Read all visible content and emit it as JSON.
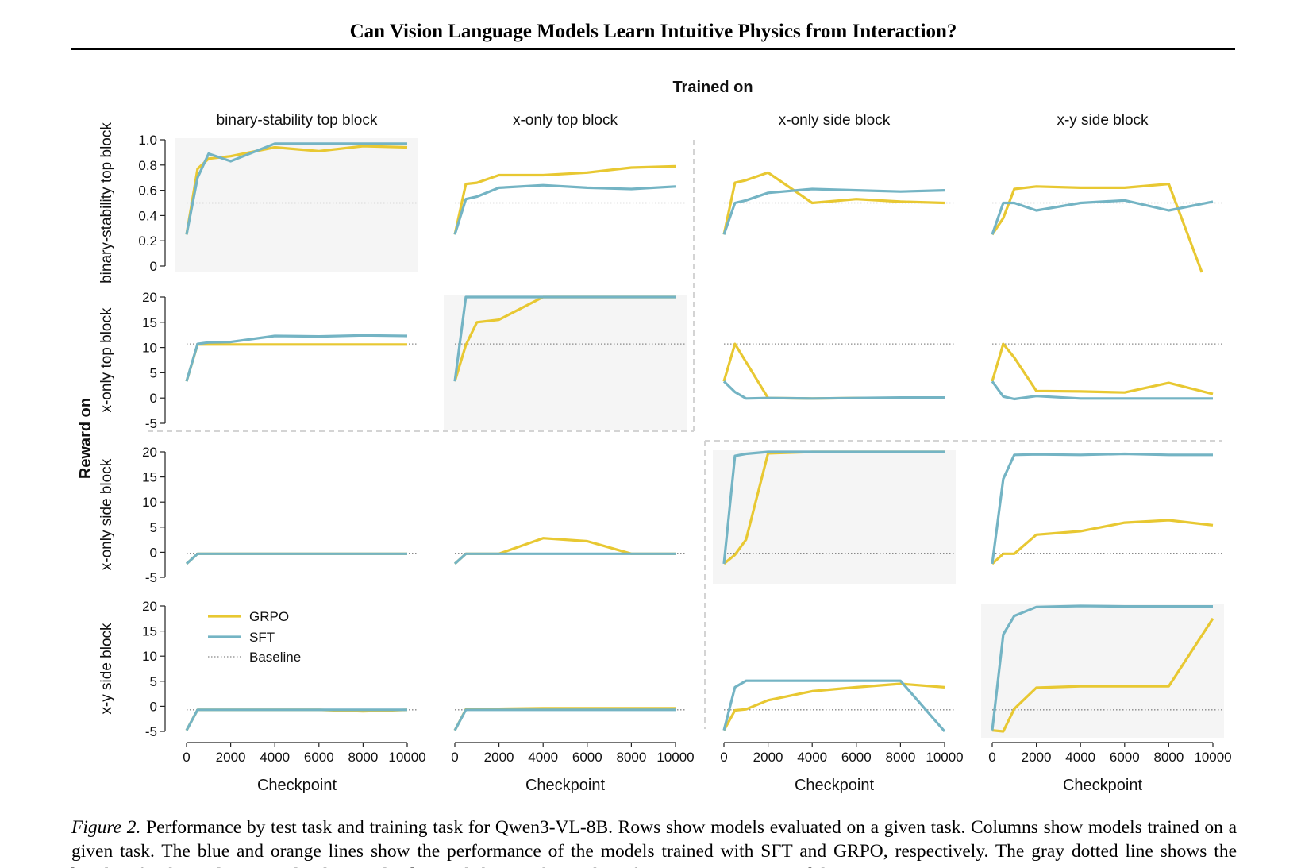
{
  "header": {
    "running_title": "Can Vision Language Models Learn Intuitive Physics from Interaction?"
  },
  "figure": {
    "trained_on_label": "Trained on",
    "reward_on_label": "Reward on",
    "legend": {
      "placement": "inside bottom-left panel, top-left",
      "entries": [
        {
          "name": "GRPO",
          "color": "#e8c832",
          "style": "solid"
        },
        {
          "name": "SFT",
          "color": "#74b4c4",
          "style": "solid"
        },
        {
          "name": "Baseline",
          "color": "#888888",
          "style": "dotted"
        }
      ]
    },
    "colors": {
      "grpo": "#e8c832",
      "sft": "#74b4c4",
      "baseline": "#888888",
      "diagonal_bg": "#f5f5f5"
    }
  },
  "chart_data": {
    "type": "line",
    "layout": "4x4 small multiples; columns = training task, rows = evaluation task; diagonal panels shaded",
    "column_titles": [
      "binary-stability top block",
      "x-only top block",
      "x-only side block",
      "x-y side block"
    ],
    "row_labels": [
      "binary-stability top block",
      "x-only top block",
      "x-only side block",
      "x-y side block"
    ],
    "xlabel": "Checkpoint",
    "x_ticks": [
      0,
      2000,
      4000,
      6000,
      8000,
      10000
    ],
    "xlim": [
      0,
      10000
    ],
    "rows": [
      {
        "ylim": [
          0,
          1.0
        ],
        "y_ticks": [
          0,
          0.2,
          0.4,
          0.6,
          0.8,
          1.0
        ],
        "y_tick_labels": [
          "0",
          "0.2",
          "0.4",
          "0.6",
          "0.8",
          "1.0"
        ],
        "baseline": 0.5
      },
      {
        "ylim": [
          -5,
          20
        ],
        "y_ticks": [
          -5,
          0,
          5,
          10,
          15,
          20
        ],
        "y_tick_labels": [
          "-5",
          "0",
          "5",
          "10",
          "15",
          "20"
        ],
        "baseline": 10.7
      },
      {
        "ylim": [
          -5,
          20
        ],
        "y_ticks": [
          -5,
          0,
          5,
          10,
          15,
          20
        ],
        "y_tick_labels": [
          "-5",
          "0",
          "5",
          "10",
          "15",
          "20"
        ],
        "baseline": -0.2
      },
      {
        "ylim": [
          -5,
          20
        ],
        "y_ticks": [
          -5,
          0,
          5,
          10,
          15,
          20
        ],
        "y_tick_labels": [
          "-5",
          "0",
          "5",
          "10",
          "15",
          "20"
        ],
        "baseline": -0.7
      }
    ],
    "panels": [
      {
        "row": 0,
        "col": 0,
        "diagonal": true,
        "series": [
          {
            "name": "GRPO",
            "x": [
              0,
              500,
              1000,
              2000,
              4000,
              6000,
              8000,
              10000
            ],
            "y": [
              0.25,
              0.77,
              0.85,
              0.87,
              0.94,
              0.91,
              0.95,
              0.94
            ]
          },
          {
            "name": "SFT",
            "x": [
              0,
              500,
              1000,
              2000,
              4000,
              6000,
              8000,
              10000
            ],
            "y": [
              0.25,
              0.7,
              0.89,
              0.83,
              0.97,
              0.97,
              0.97,
              0.97
            ]
          }
        ]
      },
      {
        "row": 0,
        "col": 1,
        "diagonal": false,
        "series": [
          {
            "name": "GRPO",
            "x": [
              0,
              500,
              1000,
              2000,
              4000,
              6000,
              8000,
              10000
            ],
            "y": [
              0.25,
              0.65,
              0.66,
              0.72,
              0.72,
              0.74,
              0.78,
              0.79
            ]
          },
          {
            "name": "SFT",
            "x": [
              0,
              500,
              1000,
              2000,
              4000,
              6000,
              8000,
              10000
            ],
            "y": [
              0.25,
              0.53,
              0.55,
              0.62,
              0.64,
              0.62,
              0.61,
              0.63
            ]
          }
        ]
      },
      {
        "row": 0,
        "col": 2,
        "diagonal": false,
        "series": [
          {
            "name": "GRPO",
            "x": [
              0,
              500,
              1000,
              2000,
              4000,
              6000,
              8000,
              10000
            ],
            "y": [
              0.25,
              0.66,
              0.68,
              0.74,
              0.5,
              0.53,
              0.51,
              0.5
            ]
          },
          {
            "name": "SFT",
            "x": [
              0,
              500,
              1000,
              2000,
              4000,
              6000,
              8000,
              10000
            ],
            "y": [
              0.25,
              0.5,
              0.52,
              0.58,
              0.61,
              0.6,
              0.59,
              0.6
            ]
          }
        ]
      },
      {
        "row": 0,
        "col": 3,
        "diagonal": false,
        "series": [
          {
            "name": "GRPO",
            "x": [
              0,
              500,
              1000,
              2000,
              4000,
              6000,
              8000,
              9500
            ],
            "y": [
              0.25,
              0.38,
              0.61,
              0.63,
              0.62,
              0.62,
              0.65,
              -0.05
            ]
          },
          {
            "name": "SFT",
            "x": [
              0,
              500,
              1000,
              2000,
              4000,
              6000,
              8000,
              10000
            ],
            "y": [
              0.25,
              0.5,
              0.5,
              0.44,
              0.5,
              0.52,
              0.44,
              0.51
            ]
          }
        ]
      },
      {
        "row": 1,
        "col": 0,
        "diagonal": false,
        "series": [
          {
            "name": "GRPO",
            "x": [
              0,
              500,
              1000,
              2000,
              4000,
              6000,
              8000,
              10000
            ],
            "y": [
              3.3,
              10.6,
              10.6,
              10.6,
              10.6,
              10.6,
              10.6,
              10.6
            ]
          },
          {
            "name": "SFT",
            "x": [
              0,
              500,
              1000,
              2000,
              4000,
              6000,
              8000,
              10000
            ],
            "y": [
              3.3,
              10.7,
              11.0,
              11.1,
              12.3,
              12.2,
              12.4,
              12.3
            ]
          }
        ]
      },
      {
        "row": 1,
        "col": 1,
        "diagonal": true,
        "series": [
          {
            "name": "GRPO",
            "x": [
              0,
              500,
              1000,
              2000,
              4000,
              6000,
              8000,
              10000
            ],
            "y": [
              3.3,
              10.5,
              15.0,
              15.5,
              20.0,
              20.0,
              20.0,
              20.0
            ]
          },
          {
            "name": "SFT",
            "x": [
              0,
              500,
              1000,
              2000,
              4000,
              6000,
              8000,
              10000
            ],
            "y": [
              3.3,
              20.0,
              20.0,
              20.0,
              20.0,
              20.0,
              20.0,
              20.0
            ]
          }
        ]
      },
      {
        "row": 1,
        "col": 2,
        "diagonal": false,
        "series": [
          {
            "name": "GRPO",
            "x": [
              0,
              500,
              2000,
              4000,
              6000,
              8000,
              10000
            ],
            "y": [
              3.3,
              10.7,
              0.0,
              -0.1,
              0.0,
              0.0,
              0.1
            ]
          },
          {
            "name": "SFT",
            "x": [
              0,
              500,
              1000,
              2000,
              4000,
              6000,
              8000,
              10000
            ],
            "y": [
              3.3,
              1.2,
              -0.1,
              0.0,
              -0.1,
              0.0,
              0.1,
              0.1
            ]
          }
        ]
      },
      {
        "row": 1,
        "col": 3,
        "diagonal": false,
        "series": [
          {
            "name": "GRPO",
            "x": [
              0,
              500,
              1000,
              2000,
              4000,
              6000,
              8000,
              10000
            ],
            "y": [
              3.3,
              10.7,
              8.0,
              1.4,
              1.3,
              1.1,
              3.0,
              0.8
            ]
          },
          {
            "name": "SFT",
            "x": [
              0,
              500,
              1000,
              2000,
              4000,
              6000,
              8000,
              10000
            ],
            "y": [
              3.3,
              0.3,
              -0.2,
              0.4,
              -0.1,
              -0.1,
              -0.1,
              -0.1
            ]
          }
        ]
      },
      {
        "row": 2,
        "col": 0,
        "diagonal": false,
        "series": [
          {
            "name": "GRPO",
            "x": [
              0,
              500,
              1000,
              2000,
              4000,
              6000,
              8000,
              10000
            ],
            "y": [
              -2.3,
              -0.3,
              -0.3,
              -0.3,
              -0.3,
              -0.3,
              -0.3,
              -0.3
            ]
          },
          {
            "name": "SFT",
            "x": [
              0,
              500,
              1000,
              2000,
              4000,
              6000,
              8000,
              10000
            ],
            "y": [
              -2.3,
              -0.3,
              -0.3,
              -0.3,
              -0.3,
              -0.3,
              -0.3,
              -0.3
            ]
          }
        ]
      },
      {
        "row": 2,
        "col": 1,
        "diagonal": false,
        "series": [
          {
            "name": "GRPO",
            "x": [
              0,
              500,
              1000,
              2000,
              4000,
              6000,
              8000,
              10000
            ],
            "y": [
              -2.3,
              -0.3,
              -0.3,
              -0.3,
              2.8,
              2.2,
              -0.3,
              -0.3
            ]
          },
          {
            "name": "SFT",
            "x": [
              0,
              500,
              1000,
              2000,
              4000,
              6000,
              8000,
              10000
            ],
            "y": [
              -2.3,
              -0.3,
              -0.3,
              -0.3,
              -0.3,
              -0.3,
              -0.3,
              -0.3
            ]
          }
        ]
      },
      {
        "row": 2,
        "col": 2,
        "diagonal": true,
        "series": [
          {
            "name": "GRPO",
            "x": [
              0,
              500,
              1000,
              2000,
              4000,
              6000,
              8000,
              10000
            ],
            "y": [
              -2.3,
              -0.5,
              2.5,
              19.7,
              20.0,
              20.0,
              20.0,
              20.0
            ]
          },
          {
            "name": "SFT",
            "x": [
              0,
              500,
              1000,
              2000,
              4000,
              6000,
              8000,
              10000
            ],
            "y": [
              -2.3,
              19.2,
              19.6,
              20.0,
              20.0,
              20.0,
              20.0,
              20.0
            ]
          }
        ]
      },
      {
        "row": 2,
        "col": 3,
        "diagonal": false,
        "series": [
          {
            "name": "GRPO",
            "x": [
              0,
              500,
              1000,
              2000,
              4000,
              6000,
              8000,
              10000
            ],
            "y": [
              -2.3,
              -0.3,
              -0.3,
              3.5,
              4.2,
              5.9,
              6.4,
              5.4
            ]
          },
          {
            "name": "SFT",
            "x": [
              0,
              500,
              1000,
              2000,
              4000,
              6000,
              8000,
              10000
            ],
            "y": [
              -2.3,
              14.6,
              19.4,
              19.5,
              19.4,
              19.6,
              19.4,
              19.4
            ]
          }
        ]
      },
      {
        "row": 3,
        "col": 0,
        "diagonal": false,
        "series": [
          {
            "name": "GRPO",
            "x": [
              0,
              500,
              1000,
              2000,
              4000,
              6000,
              8000,
              10000
            ],
            "y": [
              -4.8,
              -0.7,
              -0.7,
              -0.7,
              -0.7,
              -0.7,
              -1.0,
              -0.7
            ]
          },
          {
            "name": "SFT",
            "x": [
              0,
              500,
              1000,
              2000,
              4000,
              6000,
              8000,
              10000
            ],
            "y": [
              -4.8,
              -0.7,
              -0.7,
              -0.7,
              -0.7,
              -0.7,
              -0.7,
              -0.7
            ]
          }
        ]
      },
      {
        "row": 3,
        "col": 1,
        "diagonal": false,
        "series": [
          {
            "name": "GRPO",
            "x": [
              0,
              500,
              1000,
              2000,
              4000,
              6000,
              8000,
              10000
            ],
            "y": [
              -4.8,
              -0.6,
              -0.6,
              -0.5,
              -0.4,
              -0.4,
              -0.4,
              -0.4
            ]
          },
          {
            "name": "SFT",
            "x": [
              0,
              500,
              1000,
              2000,
              4000,
              6000,
              8000,
              10000
            ],
            "y": [
              -4.8,
              -0.7,
              -0.7,
              -0.7,
              -0.7,
              -0.7,
              -0.7,
              -0.7
            ]
          }
        ]
      },
      {
        "row": 3,
        "col": 2,
        "diagonal": false,
        "series": [
          {
            "name": "GRPO",
            "x": [
              0,
              500,
              1000,
              2000,
              4000,
              6000,
              8000,
              10000
            ],
            "y": [
              -4.8,
              -0.8,
              -0.6,
              1.2,
              3.0,
              3.8,
              4.5,
              3.8
            ]
          },
          {
            "name": "SFT",
            "x": [
              0,
              500,
              1000,
              2000,
              4000,
              6000,
              8000,
              10000
            ],
            "y": [
              -4.8,
              3.8,
              5.1,
              5.1,
              5.1,
              5.1,
              5.1,
              -5.0
            ]
          }
        ]
      },
      {
        "row": 3,
        "col": 3,
        "diagonal": true,
        "series": [
          {
            "name": "GRPO",
            "x": [
              0,
              500,
              1000,
              2000,
              4000,
              6000,
              8000,
              10000
            ],
            "y": [
              -4.8,
              -5.0,
              -0.5,
              3.7,
              4.0,
              4.0,
              4.0,
              17.5
            ]
          },
          {
            "name": "SFT",
            "x": [
              0,
              500,
              1000,
              2000,
              4000,
              6000,
              8000,
              10000
            ],
            "y": [
              -4.8,
              14.3,
              18.0,
              19.8,
              20.0,
              19.9,
              19.9,
              19.9
            ]
          }
        ]
      }
    ]
  },
  "caption": {
    "lead": "Figure 2.",
    "text": "Performance by test task and training task for Qwen3-VL-8B. Rows show models evaluated on a given task. Columns show models trained on a given task. The blue and orange lines show the performance of the models trained with SFT and GRPO, respectively. The gray dotted line shows the baseline for the evaluation task. Plots on the diagonal show within-task performance, meaning models are"
  }
}
